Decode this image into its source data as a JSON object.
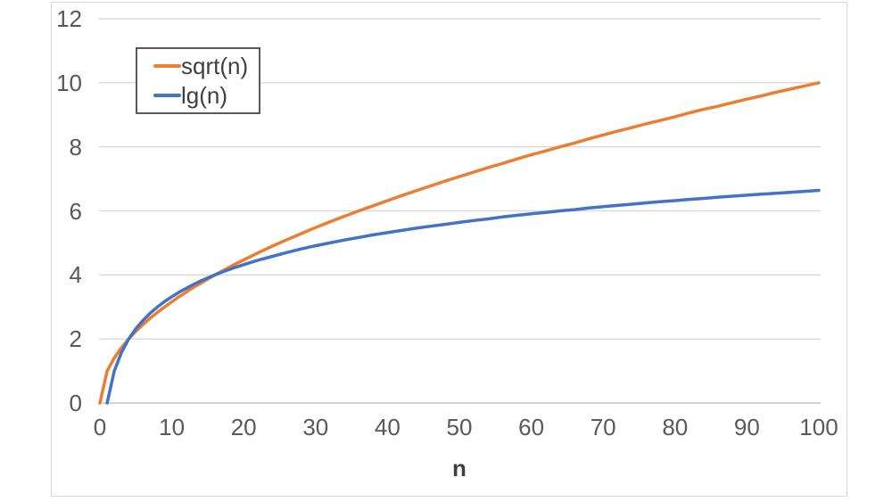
{
  "chart_data": {
    "type": "line",
    "title": "",
    "xlabel": "n",
    "ylabel": "",
    "xlim": [
      0,
      100
    ],
    "ylim": [
      0,
      12
    ],
    "x_ticks": [
      0,
      10,
      20,
      30,
      40,
      50,
      60,
      70,
      80,
      90,
      100
    ],
    "y_ticks": [
      0,
      2,
      4,
      6,
      8,
      10,
      12
    ],
    "grid": "horizontal-only",
    "legend_position": "inside-top-left",
    "series": [
      {
        "name": "sqrt(n)",
        "color": "#ED7D31",
        "x": [
          0,
          1,
          2,
          3,
          4,
          5,
          6,
          7,
          8,
          9,
          10,
          11,
          12,
          13,
          14,
          15,
          16,
          17,
          18,
          19,
          20,
          22,
          24,
          26,
          28,
          30,
          32,
          34,
          36,
          38,
          40,
          42,
          44,
          46,
          48,
          50,
          52,
          54,
          56,
          58,
          60,
          62,
          64,
          66,
          68,
          70,
          72,
          74,
          76,
          78,
          80,
          82,
          84,
          86,
          88,
          90,
          92,
          94,
          96,
          98,
          100
        ],
        "y": [
          0,
          1,
          1.41,
          1.73,
          2,
          2.24,
          2.45,
          2.65,
          2.83,
          3,
          3.16,
          3.32,
          3.46,
          3.61,
          3.74,
          3.87,
          4,
          4.12,
          4.24,
          4.36,
          4.47,
          4.69,
          4.9,
          5.1,
          5.29,
          5.48,
          5.66,
          5.83,
          6,
          6.16,
          6.32,
          6.48,
          6.63,
          6.78,
          6.93,
          7.07,
          7.21,
          7.35,
          7.48,
          7.62,
          7.75,
          7.87,
          8,
          8.12,
          8.25,
          8.37,
          8.49,
          8.6,
          8.72,
          8.83,
          8.94,
          9.06,
          9.17,
          9.27,
          9.38,
          9.49,
          9.59,
          9.7,
          9.8,
          9.9,
          10
        ]
      },
      {
        "name": "lg(n)",
        "color": "#4472C4",
        "x": [
          1,
          2,
          3,
          4,
          5,
          6,
          7,
          8,
          9,
          10,
          11,
          12,
          13,
          14,
          15,
          16,
          17,
          18,
          19,
          20,
          22,
          24,
          26,
          28,
          30,
          32,
          34,
          36,
          38,
          40,
          42,
          44,
          46,
          48,
          50,
          52,
          54,
          56,
          58,
          60,
          62,
          64,
          66,
          68,
          70,
          72,
          74,
          76,
          78,
          80,
          82,
          84,
          86,
          88,
          90,
          92,
          94,
          96,
          98,
          100
        ],
        "y": [
          0,
          1,
          1.58,
          2,
          2.32,
          2.58,
          2.81,
          3,
          3.17,
          3.32,
          3.46,
          3.58,
          3.7,
          3.81,
          3.91,
          4,
          4.09,
          4.17,
          4.25,
          4.32,
          4.46,
          4.58,
          4.7,
          4.81,
          4.91,
          5,
          5.09,
          5.17,
          5.25,
          5.32,
          5.39,
          5.46,
          5.52,
          5.58,
          5.64,
          5.7,
          5.75,
          5.81,
          5.86,
          5.91,
          5.95,
          6,
          6.04,
          6.09,
          6.13,
          6.17,
          6.21,
          6.25,
          6.29,
          6.32,
          6.36,
          6.39,
          6.43,
          6.46,
          6.49,
          6.52,
          6.55,
          6.58,
          6.61,
          6.64
        ]
      }
    ]
  },
  "styles": {
    "grid_color": "#D9D9D9",
    "axis_line_color": "#C6C6C6",
    "tick_label_color": "#595959",
    "text_color": "#3F3F3F",
    "frame_border_color": "#D9D9D9",
    "legend_border_color": "#595959",
    "background": "#FFFFFF"
  }
}
